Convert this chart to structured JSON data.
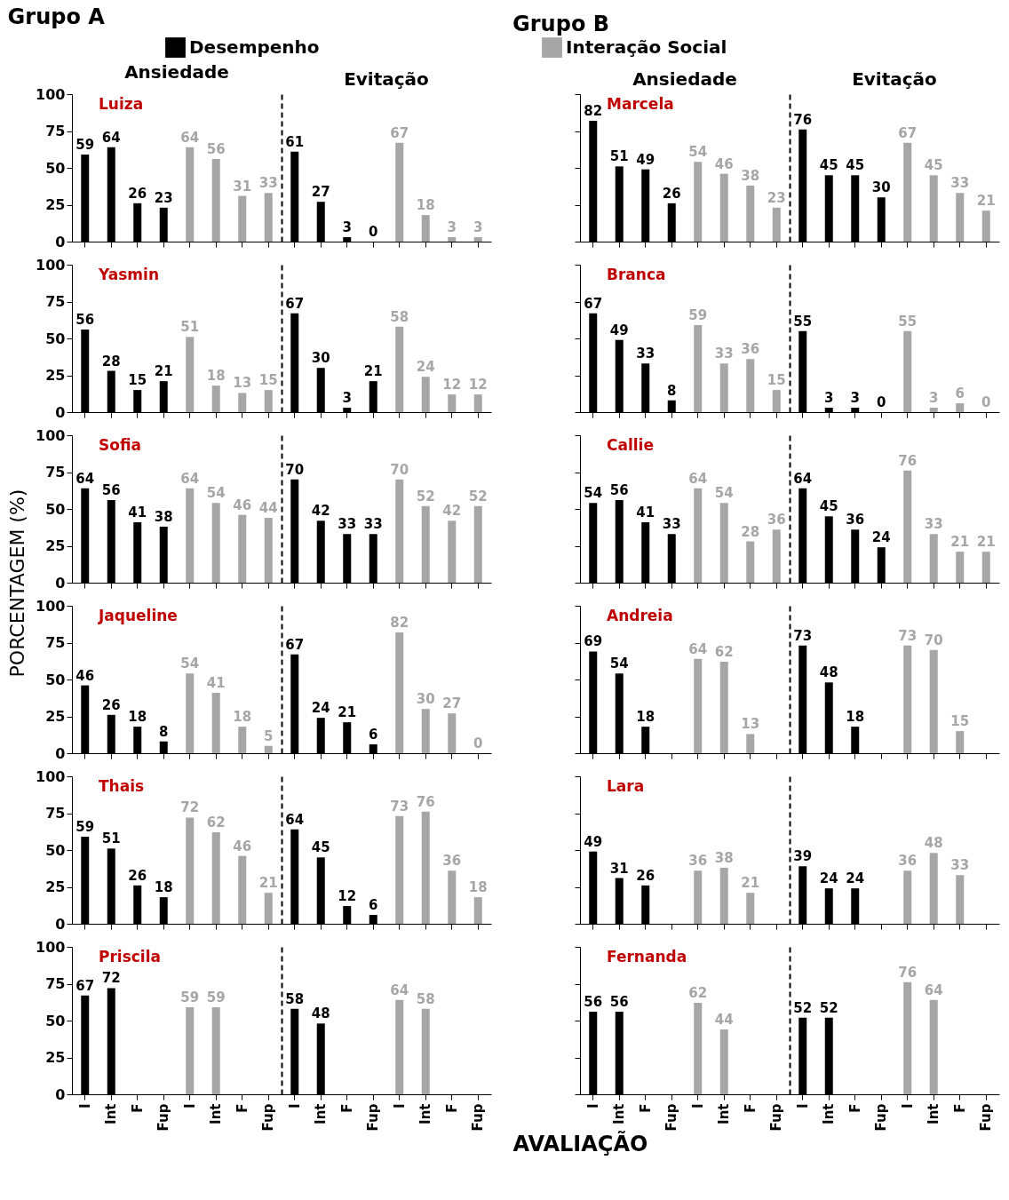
{
  "chart_data": [
    {
      "type": "bar",
      "title": "Luiza",
      "subtitle": "Ansiedade",
      "annotations": [
        "Grupo A"
      ],
      "legend": "top",
      "categories": [
        "I",
        "Int",
        "F",
        "Fup",
        "I",
        "Int",
        "F",
        "Fup"
      ],
      "series": [
        {
          "name": "Desempenho",
          "color": "#000000",
          "values": [
            59,
            64,
            26,
            23,
            null,
            null,
            null,
            null
          ]
        },
        {
          "name": "Interação Social",
          "color": "#a6a6a6",
          "values": [
            null,
            null,
            null,
            null,
            64,
            56,
            31,
            33
          ]
        }
      ],
      "ylim": [
        0,
        100
      ],
      "yticks": [
        0,
        25,
        50,
        75,
        100
      ],
      "data_labels": true,
      "tick_labels": "y"
    },
    {
      "type": "bar",
      "subtitle": "Evitação",
      "categories": [
        "I",
        "Int",
        "F",
        "Fup",
        "I",
        "Int",
        "F",
        "Fup"
      ],
      "series": [
        {
          "name": "Desempenho",
          "color": "#000000",
          "values": [
            61,
            27,
            3,
            0,
            null,
            null,
            null,
            null
          ]
        },
        {
          "name": "Interação Social",
          "color": "#a6a6a6",
          "values": [
            null,
            null,
            null,
            null,
            67,
            18,
            3,
            3
          ]
        }
      ],
      "ylim": [
        0,
        100
      ],
      "yticks": [
        0,
        25,
        50,
        75,
        100
      ],
      "data_labels": true,
      "tick_labels": false
    },
    {
      "type": "bar",
      "title": "Yasmin",
      "categories": [
        "I",
        "Int",
        "F",
        "Fup",
        "I",
        "Int",
        "F",
        "Fup"
      ],
      "series": [
        {
          "name": "Desempenho",
          "color": "#000000",
          "values": [
            56,
            28,
            15,
            21,
            null,
            null,
            null,
            null
          ]
        },
        {
          "name": "Interação Social",
          "color": "#a6a6a6",
          "values": [
            null,
            null,
            null,
            null,
            51,
            18,
            13,
            15
          ]
        }
      ],
      "ylim": [
        0,
        100
      ],
      "yticks": [
        0,
        25,
        50,
        75,
        100
      ],
      "data_labels": true,
      "tick_labels": "y"
    },
    {
      "type": "bar",
      "categories": [
        "I",
        "Int",
        "F",
        "Fup",
        "I",
        "Int",
        "F",
        "Fup"
      ],
      "series": [
        {
          "name": "Desempenho",
          "color": "#000000",
          "values": [
            67,
            30,
            3,
            21,
            null,
            null,
            null,
            null
          ]
        },
        {
          "name": "Interação Social",
          "color": "#a6a6a6",
          "values": [
            null,
            null,
            null,
            null,
            58,
            24,
            12,
            12
          ]
        }
      ],
      "ylim": [
        0,
        100
      ],
      "yticks": [
        0,
        25,
        50,
        75,
        100
      ],
      "data_labels": true,
      "tick_labels": false
    },
    {
      "type": "bar",
      "title": "Sofia",
      "ylabel": "PORCENTAGEM (%)",
      "categories": [
        "I",
        "Int",
        "F",
        "Fup",
        "I",
        "Int",
        "F",
        "Fup"
      ],
      "series": [
        {
          "name": "Desempenho",
          "color": "#000000",
          "values": [
            64,
            56,
            41,
            38,
            null,
            null,
            null,
            null
          ]
        },
        {
          "name": "Interação Social",
          "color": "#a6a6a6",
          "values": [
            null,
            null,
            null,
            null,
            64,
            54,
            46,
            44
          ]
        }
      ],
      "ylim": [
        0,
        100
      ],
      "yticks": [
        0,
        25,
        50,
        75,
        100
      ],
      "data_labels": true,
      "tick_labels": "y"
    },
    {
      "type": "bar",
      "categories": [
        "I",
        "Int",
        "F",
        "Fup",
        "I",
        "Int",
        "F",
        "Fup"
      ],
      "series": [
        {
          "name": "Desempenho",
          "color": "#000000",
          "values": [
            70,
            42,
            33,
            33,
            null,
            null,
            null,
            null
          ]
        },
        {
          "name": "Interação Social",
          "color": "#a6a6a6",
          "values": [
            null,
            null,
            null,
            null,
            70,
            52,
            42,
            52
          ]
        }
      ],
      "ylim": [
        0,
        100
      ],
      "yticks": [
        0,
        25,
        50,
        75,
        100
      ],
      "data_labels": true,
      "tick_labels": false
    },
    {
      "type": "bar",
      "title": "Jaqueline",
      "categories": [
        "I",
        "Int",
        "F",
        "Fup",
        "I",
        "Int",
        "F",
        "Fup"
      ],
      "series": [
        {
          "name": "Desempenho",
          "color": "#000000",
          "values": [
            46,
            26,
            18,
            8,
            null,
            null,
            null,
            null
          ]
        },
        {
          "name": "Interação Social",
          "color": "#a6a6a6",
          "values": [
            null,
            null,
            null,
            null,
            54,
            41,
            18,
            5
          ]
        }
      ],
      "ylim": [
        0,
        100
      ],
      "yticks": [
        0,
        25,
        50,
        75,
        100
      ],
      "data_labels": true,
      "tick_labels": "y"
    },
    {
      "type": "bar",
      "categories": [
        "I",
        "Int",
        "F",
        "Fup",
        "I",
        "Int",
        "F",
        "Fup"
      ],
      "series": [
        {
          "name": "Desempenho",
          "color": "#000000",
          "values": [
            67,
            24,
            21,
            6,
            null,
            null,
            null,
            null
          ]
        },
        {
          "name": "Interação Social",
          "color": "#a6a6a6",
          "values": [
            null,
            null,
            null,
            null,
            82,
            30,
            27,
            0
          ]
        }
      ],
      "ylim": [
        0,
        100
      ],
      "yticks": [
        0,
        25,
        50,
        75,
        100
      ],
      "data_labels": true,
      "tick_labels": false
    },
    {
      "type": "bar",
      "title": "Thais",
      "categories": [
        "I",
        "Int",
        "F",
        "Fup",
        "I",
        "Int",
        "F",
        "Fup"
      ],
      "series": [
        {
          "name": "Desempenho",
          "color": "#000000",
          "values": [
            59,
            51,
            26,
            18,
            null,
            null,
            null,
            null
          ]
        },
        {
          "name": "Interação Social",
          "color": "#a6a6a6",
          "values": [
            null,
            null,
            null,
            null,
            72,
            62,
            46,
            21
          ]
        }
      ],
      "ylim": [
        0,
        100
      ],
      "yticks": [
        0,
        25,
        50,
        75,
        100
      ],
      "data_labels": true,
      "tick_labels": "y"
    },
    {
      "type": "bar",
      "categories": [
        "I",
        "Int",
        "F",
        "Fup",
        "I",
        "Int",
        "F",
        "Fup"
      ],
      "series": [
        {
          "name": "Desempenho",
          "color": "#000000",
          "values": [
            64,
            45,
            12,
            6,
            null,
            null,
            null,
            null
          ]
        },
        {
          "name": "Interação Social",
          "color": "#a6a6a6",
          "values": [
            null,
            null,
            null,
            null,
            73,
            76,
            36,
            18
          ]
        }
      ],
      "ylim": [
        0,
        100
      ],
      "yticks": [
        0,
        25,
        50,
        75,
        100
      ],
      "data_labels": true,
      "tick_labels": false
    },
    {
      "type": "bar",
      "title": "Priscila",
      "categories": [
        "I",
        "Int",
        "F",
        "Fup",
        "I",
        "Int",
        "F",
        "Fup"
      ],
      "series": [
        {
          "name": "Desempenho",
          "color": "#000000",
          "values": [
            67,
            72,
            null,
            null,
            null,
            null,
            null,
            null
          ]
        },
        {
          "name": "Interação Social",
          "color": "#a6a6a6",
          "values": [
            null,
            null,
            null,
            null,
            59,
            59,
            null,
            null
          ]
        }
      ],
      "ylim": [
        0,
        100
      ],
      "yticks": [
        0,
        25,
        50,
        75,
        100
      ],
      "data_labels": true
    },
    {
      "type": "bar",
      "categories": [
        "I",
        "Int",
        "F",
        "Fup",
        "I",
        "Int",
        "F",
        "Fup"
      ],
      "series": [
        {
          "name": "Desempenho",
          "color": "#000000",
          "values": [
            58,
            48,
            null,
            null,
            null,
            null,
            null,
            null
          ]
        },
        {
          "name": "Interação Social",
          "color": "#a6a6a6",
          "values": [
            null,
            null,
            null,
            null,
            64,
            58,
            null,
            null
          ]
        }
      ],
      "ylim": [
        0,
        100
      ],
      "yticks": [
        0,
        25,
        50,
        75,
        100
      ],
      "data_labels": true,
      "tick_labels": "x"
    },
    {
      "type": "bar",
      "title": "Marcela",
      "subtitle": "Ansiedade",
      "annotations": [
        "Grupo B"
      ],
      "categories": [
        "I",
        "Int",
        "F",
        "Fup",
        "I",
        "Int",
        "F",
        "Fup"
      ],
      "series": [
        {
          "name": "Desempenho",
          "color": "#000000",
          "values": [
            82,
            51,
            49,
            26,
            null,
            null,
            null,
            null
          ]
        },
        {
          "name": "Interação Social",
          "color": "#a6a6a6",
          "values": [
            null,
            null,
            null,
            null,
            54,
            46,
            38,
            23
          ]
        }
      ],
      "ylim": [
        0,
        100
      ],
      "yticks": [
        0,
        25,
        50,
        75,
        100
      ],
      "data_labels": true,
      "tick_labels": false
    },
    {
      "type": "bar",
      "subtitle": "Evitação",
      "categories": [
        "I",
        "Int",
        "F",
        "Fup",
        "I",
        "Int",
        "F",
        "Fup"
      ],
      "series": [
        {
          "name": "Desempenho",
          "color": "#000000",
          "values": [
            76,
            45,
            45,
            30,
            null,
            null,
            null,
            null
          ]
        },
        {
          "name": "Interação Social",
          "color": "#a6a6a6",
          "values": [
            null,
            null,
            null,
            null,
            67,
            45,
            33,
            21
          ]
        }
      ],
      "ylim": [
        0,
        100
      ],
      "yticks": [
        0,
        25,
        50,
        75,
        100
      ],
      "data_labels": true,
      "tick_labels": false
    },
    {
      "type": "bar",
      "title": "Branca",
      "categories": [
        "I",
        "Int",
        "F",
        "Fup",
        "I",
        "Int",
        "F",
        "Fup"
      ],
      "series": [
        {
          "name": "Desempenho",
          "color": "#000000",
          "values": [
            67,
            49,
            33,
            8,
            null,
            null,
            null,
            null
          ]
        },
        {
          "name": "Interação Social",
          "color": "#a6a6a6",
          "values": [
            null,
            null,
            null,
            null,
            59,
            33,
            36,
            15
          ]
        }
      ],
      "ylim": [
        0,
        100
      ],
      "yticks": [
        0,
        25,
        50,
        75,
        100
      ],
      "data_labels": true,
      "tick_labels": false
    },
    {
      "type": "bar",
      "categories": [
        "I",
        "Int",
        "F",
        "Fup",
        "I",
        "Int",
        "F",
        "Fup"
      ],
      "series": [
        {
          "name": "Desempenho",
          "color": "#000000",
          "values": [
            55,
            3,
            3,
            0,
            null,
            null,
            null,
            null
          ]
        },
        {
          "name": "Interação Social",
          "color": "#a6a6a6",
          "values": [
            null,
            null,
            null,
            null,
            55,
            3,
            6,
            0
          ]
        }
      ],
      "ylim": [
        0,
        100
      ],
      "yticks": [
        0,
        25,
        50,
        75,
        100
      ],
      "data_labels": true,
      "tick_labels": false
    },
    {
      "type": "bar",
      "title": "Callie",
      "categories": [
        "I",
        "Int",
        "F",
        "Fup",
        "I",
        "Int",
        "F",
        "Fup"
      ],
      "series": [
        {
          "name": "Desempenho",
          "color": "#000000",
          "values": [
            54,
            56,
            41,
            33,
            null,
            null,
            null,
            null
          ]
        },
        {
          "name": "Interação Social",
          "color": "#a6a6a6",
          "values": [
            null,
            null,
            null,
            null,
            64,
            54,
            28,
            36
          ]
        }
      ],
      "ylim": [
        0,
        100
      ],
      "yticks": [
        0,
        25,
        50,
        75,
        100
      ],
      "data_labels": true,
      "tick_labels": false
    },
    {
      "type": "bar",
      "categories": [
        "I",
        "Int",
        "F",
        "Fup",
        "I",
        "Int",
        "F",
        "Fup"
      ],
      "series": [
        {
          "name": "Desempenho",
          "color": "#000000",
          "values": [
            64,
            45,
            36,
            24,
            null,
            null,
            null,
            null
          ]
        },
        {
          "name": "Interação Social",
          "color": "#a6a6a6",
          "values": [
            null,
            null,
            null,
            null,
            76,
            33,
            21,
            21
          ]
        }
      ],
      "ylim": [
        0,
        100
      ],
      "yticks": [
        0,
        25,
        50,
        75,
        100
      ],
      "data_labels": true,
      "tick_labels": false
    },
    {
      "type": "bar",
      "title": "Andreia",
      "categories": [
        "I",
        "Int",
        "F",
        "Fup",
        "I",
        "Int",
        "F",
        "Fup"
      ],
      "series": [
        {
          "name": "Desempenho",
          "color": "#000000",
          "values": [
            69,
            54,
            18,
            null,
            null,
            null,
            null,
            null
          ]
        },
        {
          "name": "Interação Social",
          "color": "#a6a6a6",
          "values": [
            null,
            null,
            null,
            null,
            64,
            62,
            13,
            null
          ]
        }
      ],
      "ylim": [
        0,
        100
      ],
      "yticks": [
        0,
        25,
        50,
        75,
        100
      ],
      "data_labels": true,
      "tick_labels": false
    },
    {
      "type": "bar",
      "categories": [
        "I",
        "Int",
        "F",
        "Fup",
        "I",
        "Int",
        "F",
        "Fup"
      ],
      "series": [
        {
          "name": "Desempenho",
          "color": "#000000",
          "values": [
            73,
            48,
            18,
            null,
            null,
            null,
            null,
            null
          ]
        },
        {
          "name": "Interação Social",
          "color": "#a6a6a6",
          "values": [
            null,
            null,
            null,
            null,
            73,
            70,
            15,
            null
          ]
        }
      ],
      "ylim": [
        0,
        100
      ],
      "yticks": [
        0,
        25,
        50,
        75,
        100
      ],
      "data_labels": true,
      "tick_labels": false
    },
    {
      "type": "bar",
      "title": "Lara",
      "categories": [
        "I",
        "Int",
        "F",
        "Fup",
        "I",
        "Int",
        "F",
        "Fup"
      ],
      "series": [
        {
          "name": "Desempenho",
          "color": "#000000",
          "values": [
            49,
            31,
            26,
            null,
            null,
            null,
            null,
            null
          ]
        },
        {
          "name": "Interação Social",
          "color": "#a6a6a6",
          "values": [
            null,
            null,
            null,
            null,
            36,
            38,
            21,
            null
          ]
        }
      ],
      "ylim": [
        0,
        100
      ],
      "yticks": [
        0,
        25,
        50,
        75,
        100
      ],
      "data_labels": true,
      "tick_labels": false
    },
    {
      "type": "bar",
      "categories": [
        "I",
        "Int",
        "F",
        "Fup",
        "I",
        "Int",
        "F",
        "Fup"
      ],
      "series": [
        {
          "name": "Desempenho",
          "color": "#000000",
          "values": [
            39,
            24,
            24,
            null,
            null,
            null,
            null,
            null
          ]
        },
        {
          "name": "Interação Social",
          "color": "#a6a6a6",
          "values": [
            null,
            null,
            null,
            null,
            36,
            48,
            33,
            null
          ]
        }
      ],
      "ylim": [
        0,
        100
      ],
      "yticks": [
        0,
        25,
        50,
        75,
        100
      ],
      "data_labels": true,
      "tick_labels": false
    },
    {
      "type": "bar",
      "title": "Fernanda",
      "xlabel": "AVALIAÇÃO",
      "categories": [
        "I",
        "Int",
        "F",
        "Fup",
        "I",
        "Int",
        "F",
        "Fup"
      ],
      "series": [
        {
          "name": "Desempenho",
          "color": "#000000",
          "values": [
            56,
            56,
            null,
            null,
            null,
            null,
            null,
            null
          ]
        },
        {
          "name": "Interação Social",
          "color": "#a6a6a6",
          "values": [
            null,
            null,
            null,
            null,
            62,
            44,
            null,
            null
          ]
        }
      ],
      "ylim": [
        0,
        100
      ],
      "yticks": [
        0,
        25,
        50,
        75,
        100
      ],
      "data_labels": true,
      "tick_labels": "x"
    },
    {
      "type": "bar",
      "categories": [
        "I",
        "Int",
        "F",
        "Fup",
        "I",
        "Int",
        "F",
        "Fup"
      ],
      "series": [
        {
          "name": "Desempenho",
          "color": "#000000",
          "values": [
            52,
            52,
            null,
            null,
            null,
            null,
            null,
            null
          ]
        },
        {
          "name": "Interação Social",
          "color": "#a6a6a6",
          "values": [
            null,
            null,
            null,
            null,
            76,
            64,
            null,
            null
          ]
        }
      ],
      "ylim": [
        0,
        100
      ],
      "yticks": [
        0,
        25,
        50,
        75,
        100
      ],
      "data_labels": true,
      "tick_labels": "x"
    }
  ]
}
